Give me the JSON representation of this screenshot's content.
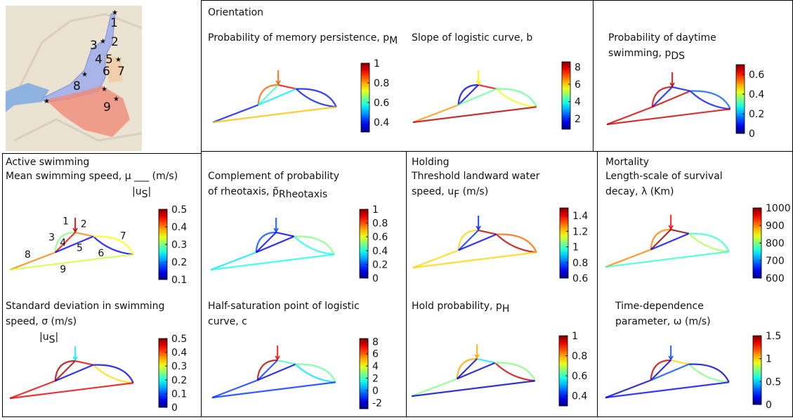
{
  "map": {
    "labels": [
      "1",
      "2",
      "3",
      "4",
      "5",
      "6",
      "7",
      "8",
      "9"
    ]
  },
  "headers": [
    "Orientation",
    "Active swimming",
    "Holding",
    "Mortality"
  ],
  "edge_labels": [
    "1",
    "2",
    "3",
    "4",
    "5",
    "6",
    "7",
    "8",
    "9"
  ],
  "panels": [
    {
      "lines": [
        [
          "Probability of memory persistence, p",
          {
            "sub": "M"
          }
        ]
      ],
      "clim": [
        0.3,
        1
      ],
      "ticks": [
        0.4,
        0.6,
        0.8,
        1
      ],
      "values": [
        0.85,
        0.92,
        0.85,
        0.6,
        0.55,
        0.4,
        0.4,
        0.4,
        0.78
      ]
    },
    {
      "lines": [
        [
          "Slope of logistic curve, b"
        ]
      ],
      "clim": [
        0.8,
        8.6
      ],
      "ticks": [
        2,
        4,
        6,
        8
      ],
      "values": [
        5.8,
        7.8,
        1.5,
        1.5,
        4.5,
        5.5,
        4.5,
        6.5,
        8.2
      ]
    },
    {
      "lines": [
        [
          "Probability of daytime"
        ],
        [
          "swimming, p",
          {
            "sub": "DS"
          }
        ]
      ],
      "clim": [
        0,
        0.7
      ],
      "ticks": [
        0,
        0.2,
        0.4,
        0.6
      ],
      "values": [
        0.65,
        0.1,
        0.65,
        0.1,
        0.65,
        0.1,
        0.15,
        0.65,
        0.65
      ]
    },
    {
      "lines": [
        [
          "Mean swimming speed, μ ___ (m/s)"
        ],
        [
          "|u",
          {
            "sub": "S"
          },
          "|"
        ]
      ],
      "clim": [
        0.1,
        0.5
      ],
      "ticks": [
        0.1,
        0.2,
        0.3,
        0.4,
        0.5
      ],
      "values": [
        0.48,
        0.4,
        0.3,
        0.45,
        0.15,
        0.15,
        0.35,
        0.4,
        0.33
      ]
    },
    {
      "lines": [
        [
          "Complement of probability"
        ],
        [
          "of rheotaxis, p̃",
          {
            "sub": "Rheotaxis"
          }
        ]
      ],
      "clim": [
        0,
        1
      ],
      "ticks": [
        0,
        0.2,
        0.4,
        0.6,
        0.8,
        1
      ],
      "values": [
        0.2,
        0.1,
        0.2,
        0.1,
        0.1,
        0.4,
        0.5,
        0.35,
        0.4
      ]
    },
    {
      "lines": [
        [
          "Threshold landward water"
        ],
        [
          "speed, u",
          {
            "sub": "F"
          },
          " (m/s)"
        ]
      ],
      "clim": [
        0.6,
        1.5
      ],
      "ticks": [
        0.6,
        0.8,
        1,
        1.2,
        1.4
      ],
      "values": [
        0.75,
        1.45,
        1.2,
        0.75,
        0.7,
        1.45,
        1.3,
        1.2,
        1.2
      ]
    },
    {
      "lines": [
        [
          "Length-scale of survival"
        ],
        [
          "decay, λ (Km)"
        ]
      ],
      "clim": [
        600,
        1000
      ],
      "ticks": [
        600,
        700,
        800,
        900,
        1000
      ],
      "values": [
        950,
        1000,
        900,
        1000,
        650,
        820,
        770,
        900,
        770
      ]
    },
    {
      "lines": [
        [
          "Standard deviation in swimming"
        ],
        [
          "speed, σ       (m/s)"
        ],
        [
          "|u",
          {
            "sub": "S"
          },
          "|"
        ]
      ],
      "clim": [
        0,
        0.5
      ],
      "ticks": [
        0,
        0.1,
        0.2,
        0.3,
        0.4,
        0.5
      ],
      "values": [
        0.18,
        0.45,
        0.48,
        0.48,
        0.05,
        0.33,
        0.05,
        0.45,
        0.45
      ]
    },
    {
      "lines": [
        [
          "Half-saturation point of logistic"
        ],
        [
          "curve, c"
        ]
      ],
      "clim": [
        -3,
        8.5
      ],
      "ticks": [
        -2,
        0,
        2,
        4,
        6,
        8
      ],
      "values": [
        7,
        2,
        8,
        -1,
        -2,
        1,
        2.5,
        -1,
        -1
      ]
    },
    {
      "lines": [
        [
          "Hold probability, p",
          {
            "sub": "H"
          }
        ]
      ],
      "clim": [
        0.3,
        1
      ],
      "ticks": [
        0.4,
        0.6,
        0.8,
        1
      ],
      "values": [
        0.8,
        0.55,
        0.8,
        0.35,
        0.35,
        0.95,
        0.65,
        0.65,
        0.35
      ]
    },
    {
      "lines": [
        [
          "Time-dependence"
        ],
        [
          "parameter, ω (m/s)"
        ]
      ],
      "clim": [
        0,
        1.5
      ],
      "ticks": [
        0,
        0.5,
        1,
        1.5
      ],
      "values": [
        0.3,
        1.0,
        1.4,
        0.1,
        0.3,
        0.75,
        0.1,
        0.1,
        0.2
      ]
    }
  ]
}
